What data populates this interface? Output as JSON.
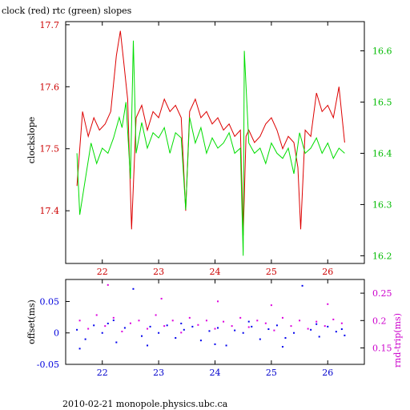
{
  "chart_data": [
    {
      "type": "line",
      "title": "clock (red) rtc (green) slopes",
      "ylabel": "clockslope",
      "x": {
        "ticks": [
          22,
          23,
          24,
          25,
          26
        ],
        "range": [
          21.35,
          26.65
        ]
      },
      "y_left": {
        "ticks": [
          17.4,
          17.5,
          17.6,
          17.7
        ],
        "range": [
          17.315,
          17.705
        ],
        "color": "#cc0000"
      },
      "y_right": {
        "ticks": [
          16.2,
          16.3,
          16.4,
          16.5,
          16.6
        ],
        "range": [
          16.185,
          16.657
        ],
        "color": "#00bb00"
      },
      "series": [
        {
          "name": "clock",
          "axis": "left",
          "color": "#dd0000",
          "x": [
            21.55,
            21.65,
            21.75,
            21.85,
            21.95,
            22.05,
            22.15,
            22.25,
            22.32,
            22.38,
            22.45,
            22.52,
            22.6,
            22.7,
            22.8,
            22.9,
            23.0,
            23.1,
            23.2,
            23.3,
            23.4,
            23.48,
            23.55,
            23.65,
            23.75,
            23.85,
            23.95,
            24.05,
            24.15,
            24.25,
            24.35,
            24.45,
            24.5,
            24.55,
            24.6,
            24.7,
            24.8,
            24.9,
            25.0,
            25.1,
            25.2,
            25.3,
            25.4,
            25.47,
            25.52,
            25.6,
            25.7,
            25.8,
            25.9,
            26.0,
            26.1,
            26.2,
            26.3
          ],
          "y": [
            17.44,
            17.56,
            17.52,
            17.55,
            17.53,
            17.54,
            17.56,
            17.65,
            17.69,
            17.64,
            17.58,
            17.37,
            17.55,
            17.57,
            17.53,
            17.56,
            17.55,
            17.58,
            17.56,
            17.57,
            17.55,
            17.4,
            17.56,
            17.58,
            17.55,
            17.56,
            17.54,
            17.55,
            17.53,
            17.54,
            17.52,
            17.53,
            17.36,
            17.52,
            17.53,
            17.51,
            17.52,
            17.54,
            17.55,
            17.53,
            17.5,
            17.52,
            17.51,
            17.47,
            17.37,
            17.53,
            17.52,
            17.59,
            17.56,
            17.57,
            17.55,
            17.6,
            17.51
          ]
        },
        {
          "name": "rtc",
          "axis": "right",
          "color": "#00dd00",
          "x": [
            21.55,
            21.6,
            21.7,
            21.8,
            21.9,
            22.0,
            22.1,
            22.2,
            22.3,
            22.35,
            22.42,
            22.5,
            22.55,
            22.6,
            22.7,
            22.8,
            22.9,
            23.0,
            23.1,
            23.2,
            23.3,
            23.4,
            23.48,
            23.55,
            23.65,
            23.75,
            23.85,
            23.95,
            24.05,
            24.15,
            24.25,
            24.35,
            24.45,
            24.5,
            24.52,
            24.6,
            24.7,
            24.8,
            24.9,
            25.0,
            25.1,
            25.2,
            25.3,
            25.4,
            25.5,
            25.6,
            25.7,
            25.8,
            25.9,
            26.0,
            26.1,
            26.2,
            26.3
          ],
          "y": [
            16.4,
            16.28,
            16.35,
            16.42,
            16.38,
            16.41,
            16.4,
            16.43,
            16.47,
            16.45,
            16.5,
            16.35,
            16.62,
            16.4,
            16.46,
            16.41,
            16.44,
            16.43,
            16.45,
            16.4,
            16.44,
            16.43,
            16.29,
            16.47,
            16.42,
            16.45,
            16.4,
            16.43,
            16.41,
            16.42,
            16.44,
            16.4,
            16.41,
            16.2,
            16.6,
            16.42,
            16.4,
            16.41,
            16.38,
            16.42,
            16.4,
            16.39,
            16.41,
            16.36,
            16.44,
            16.4,
            16.41,
            16.43,
            16.4,
            16.42,
            16.39,
            16.41,
            16.4
          ]
        }
      ]
    },
    {
      "type": "scatter",
      "ylabel_left": "offset(ms)",
      "ylabel_right": "rnd-trip(ms)",
      "x": {
        "ticks": [
          22,
          23,
          24,
          25,
          26
        ],
        "range": [
          21.35,
          26.65
        ]
      },
      "y_left": {
        "ticks": [
          -0.05,
          0,
          0.05
        ],
        "tick_labels": [
          "-0.05",
          "0",
          "0.05"
        ],
        "range": [
          -0.05,
          0.085
        ],
        "color": "#0000dd"
      },
      "y_right": {
        "ticks": [
          0.15,
          0.2,
          0.25
        ],
        "tick_labels": [
          "0.15",
          "0.2",
          "0.25"
        ],
        "range": [
          0.12,
          0.275
        ],
        "color": "#cc00cc"
      },
      "series": [
        {
          "name": "offset",
          "axis": "left",
          "color": "#0000ee",
          "x": [
            21.55,
            21.7,
            21.85,
            22.0,
            22.1,
            22.25,
            22.4,
            22.55,
            22.7,
            22.85,
            23.0,
            23.15,
            23.3,
            23.45,
            23.6,
            23.75,
            23.9,
            24.05,
            24.2,
            24.35,
            24.5,
            24.65,
            24.8,
            24.95,
            25.1,
            25.25,
            25.4,
            25.55,
            25.7,
            25.85,
            26.0,
            26.15,
            26.3,
            21.6,
            22.2,
            22.8,
            23.4,
            24.0,
            24.6,
            25.2,
            25.8,
            26.25
          ],
          "y": [
            0.005,
            -0.01,
            0.012,
            0.0,
            0.015,
            -0.015,
            0.008,
            0.07,
            -0.005,
            0.01,
            0.0,
            0.012,
            -0.008,
            0.005,
            0.01,
            -0.012,
            0.003,
            0.008,
            -0.02,
            0.004,
            0.0,
            0.01,
            -0.01,
            0.006,
            0.012,
            -0.008,
            0.0,
            0.075,
            0.005,
            -0.006,
            0.01,
            0.002,
            -0.004,
            -0.025,
            0.02,
            -0.02,
            0.015,
            -0.018,
            0.018,
            -0.022,
            0.014,
            0.006
          ]
        },
        {
          "name": "rnd-trip",
          "axis": "right",
          "color": "#dd00dd",
          "x": [
            21.6,
            21.75,
            21.9,
            22.05,
            22.2,
            22.35,
            22.5,
            22.65,
            22.8,
            22.95,
            23.1,
            23.25,
            23.4,
            23.55,
            23.7,
            23.85,
            24.0,
            24.15,
            24.3,
            24.45,
            24.6,
            24.75,
            24.9,
            25.05,
            25.2,
            25.35,
            25.5,
            25.65,
            25.8,
            25.95,
            26.1,
            26.25,
            22.1,
            23.05,
            24.05,
            25.0,
            26.0
          ],
          "y": [
            0.2,
            0.185,
            0.21,
            0.19,
            0.205,
            0.18,
            0.195,
            0.2,
            0.185,
            0.21,
            0.19,
            0.2,
            0.178,
            0.205,
            0.192,
            0.2,
            0.185,
            0.198,
            0.19,
            0.205,
            0.188,
            0.2,
            0.195,
            0.182,
            0.205,
            0.19,
            0.2,
            0.185,
            0.198,
            0.19,
            0.202,
            0.195,
            0.265,
            0.24,
            0.235,
            0.228,
            0.23
          ]
        }
      ]
    }
  ],
  "footer": "2010-02-21  monopole.physics.ubc.ca"
}
